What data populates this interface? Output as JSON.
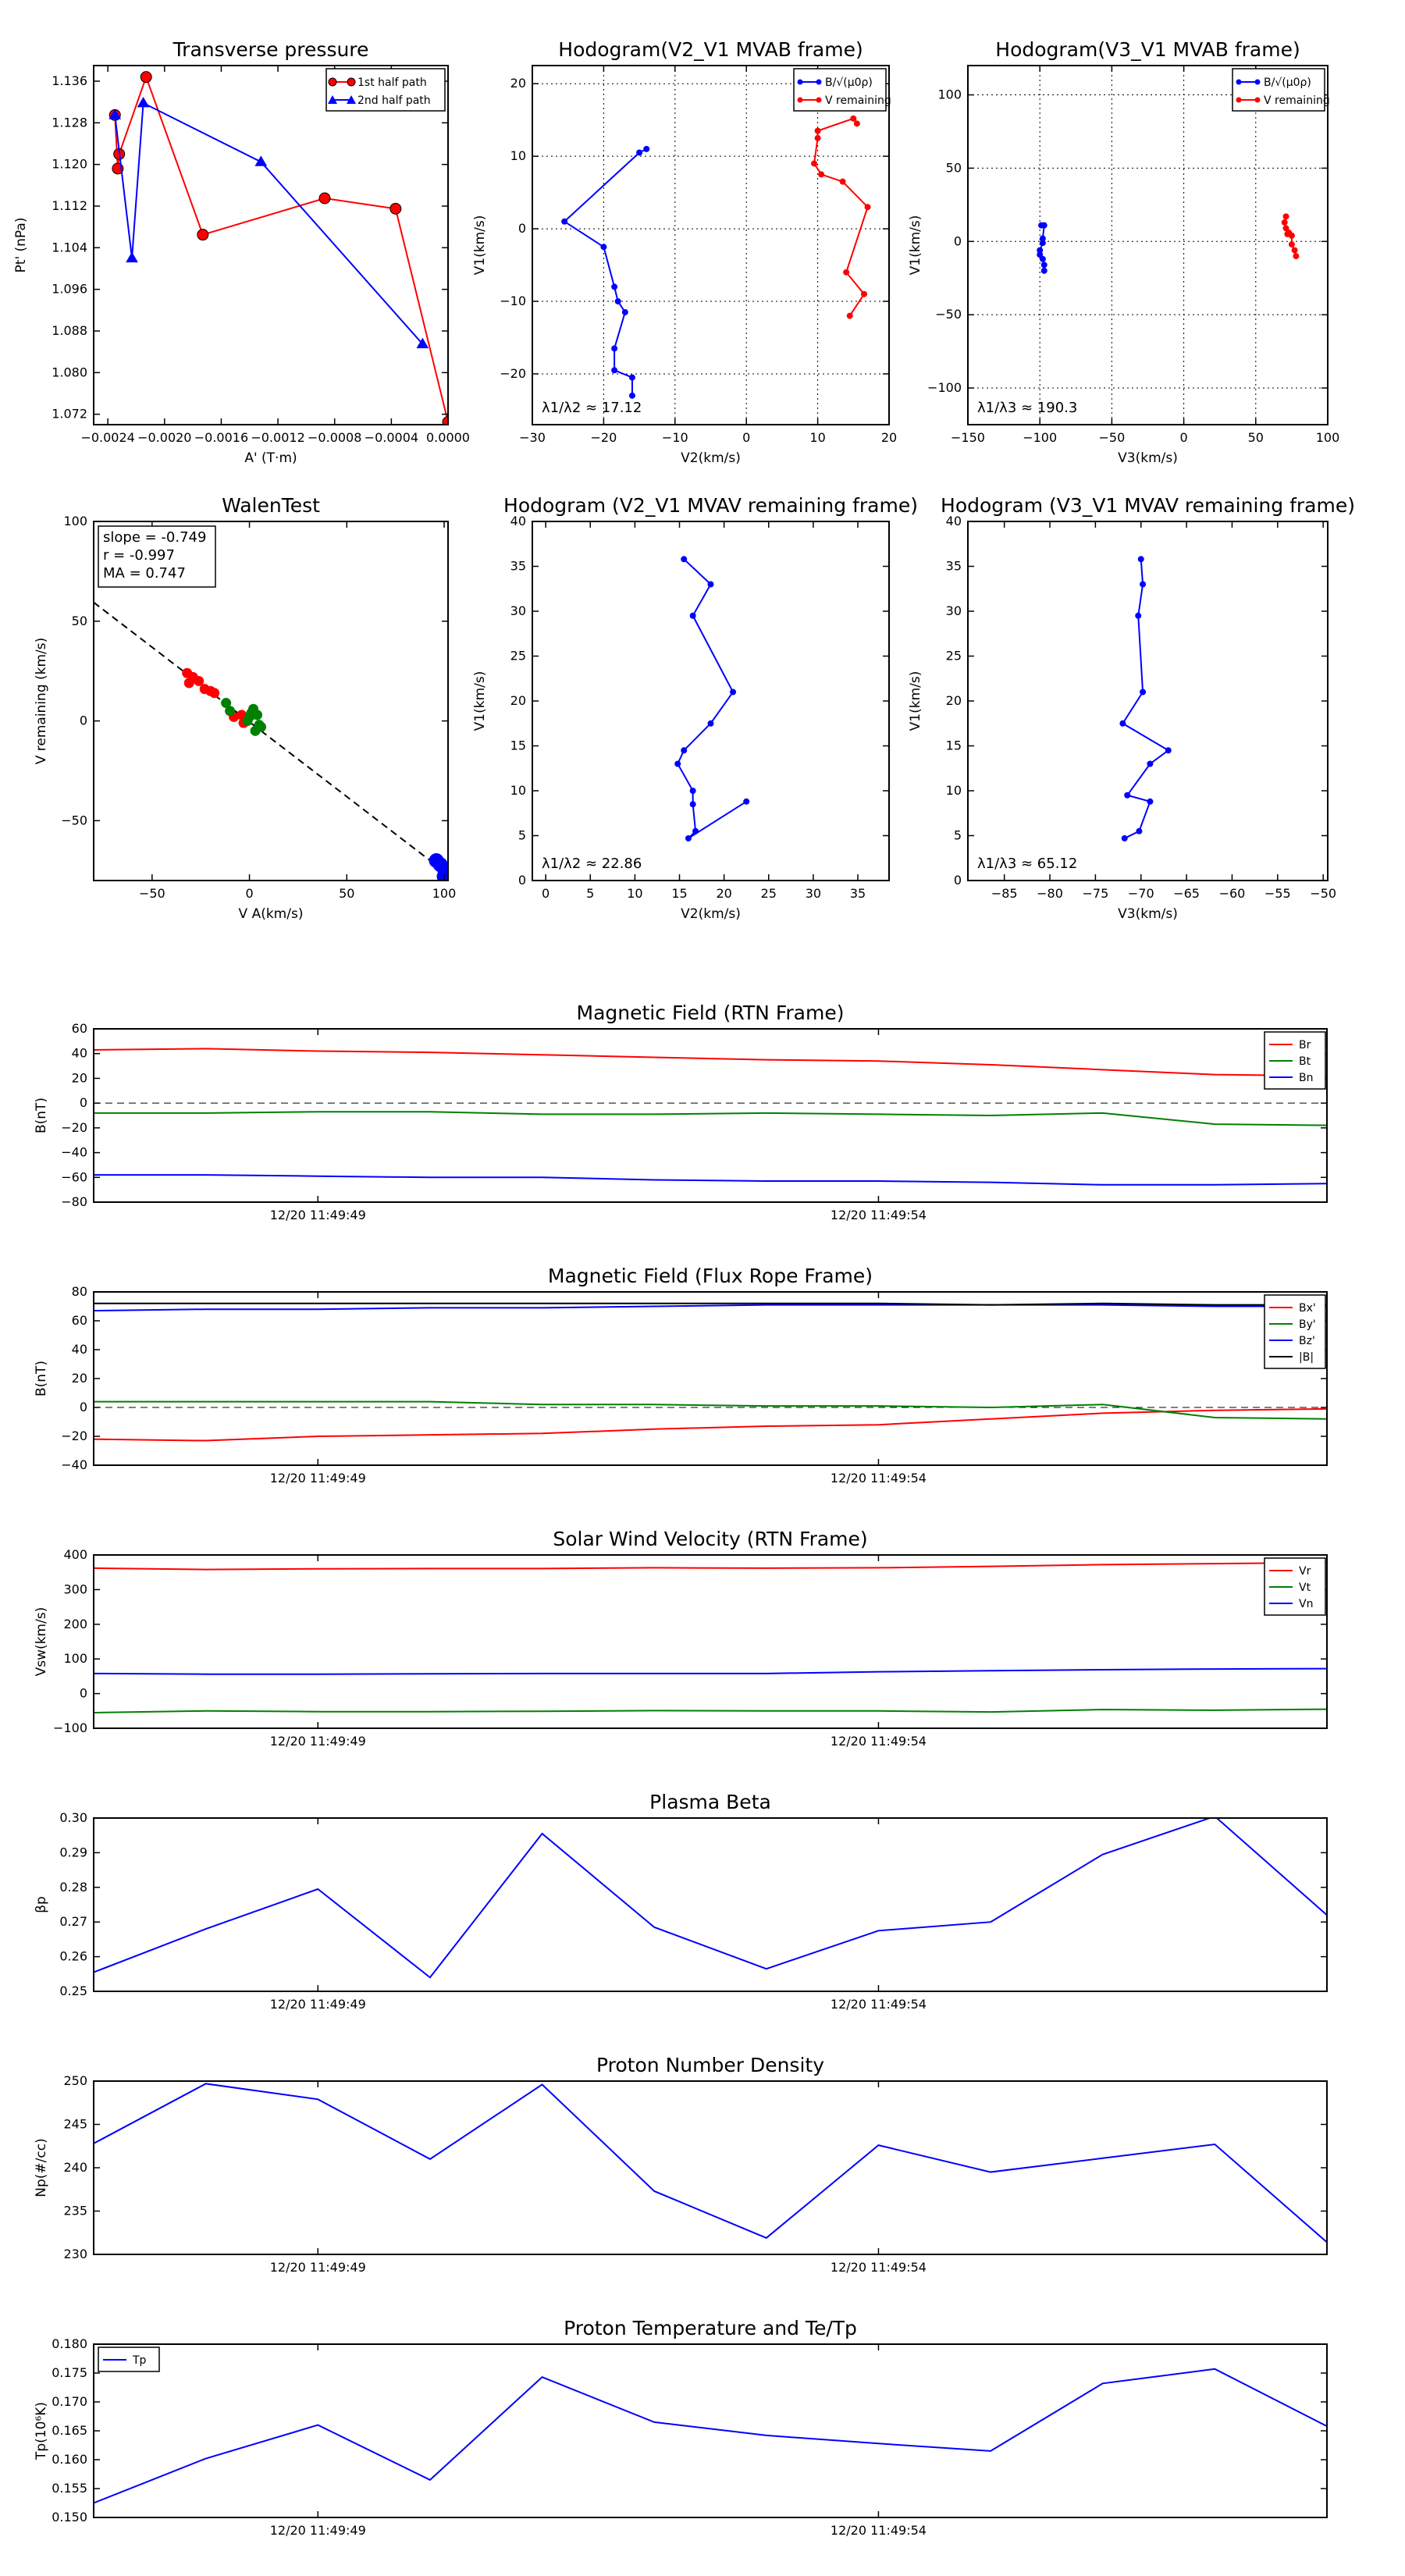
{
  "chart_data": [
    {
      "id": "p1",
      "type": "line",
      "title": "Transverse pressure",
      "xlabel": "A' (T·m)",
      "ylabel": "Pt' (nPa)",
      "xlim": [
        -0.0025,
        0.0
      ],
      "ylim": [
        1.07,
        1.139
      ],
      "xticks": [
        -0.0024,
        -0.002,
        -0.0016,
        -0.0012,
        -0.0008,
        -0.0004,
        0.0
      ],
      "xticklabels": [
        "−0.0024",
        "−0.0020",
        "−0.0016",
        "−0.0012",
        "−0.0008",
        "−0.0004",
        "0.0000"
      ],
      "yticks": [
        1.072,
        1.08,
        1.088,
        1.096,
        1.104,
        1.112,
        1.12,
        1.128,
        1.136
      ],
      "yticklabels": [
        "1.072",
        "1.080",
        "1.088",
        "1.096",
        "1.104",
        "1.112",
        "1.120",
        "1.128",
        "1.136"
      ],
      "grid": false,
      "legend": "top-right",
      "series": [
        {
          "name": "1st half path",
          "color": "#ff0000",
          "marker": "circle",
          "x": [
            0.0,
            -0.00037,
            -0.00087,
            -0.00173,
            -0.00213,
            -0.00232,
            -0.00233,
            -0.00235
          ],
          "y": [
            1.0705,
            1.1115,
            1.1135,
            1.1065,
            1.1368,
            1.122,
            1.1192,
            1.1295
          ]
        },
        {
          "name": "2nd half path",
          "color": "#0000ff",
          "marker": "triangle",
          "x": [
            -0.00235,
            -0.00223,
            -0.00215,
            -0.00132,
            -0.00018
          ],
          "y": [
            1.1295,
            1.102,
            1.1318,
            1.1205,
            1.0855
          ]
        }
      ]
    },
    {
      "id": "p2",
      "type": "line",
      "title": "Hodogram(V2_V1 MVAB frame)",
      "xlabel": "V2(km/s)",
      "ylabel": "V1(km/s)",
      "xlim": [
        -30,
        20
      ],
      "ylim": [
        -27,
        22.5
      ],
      "xticks": [
        -30,
        -20,
        -10,
        0,
        10,
        20
      ],
      "yticks": [
        -20,
        -10,
        0,
        10,
        20
      ],
      "xticklabels": [
        "−30",
        "−20",
        "−10",
        "0",
        "10",
        "20"
      ],
      "yticklabels": [
        "−20",
        "−10",
        "0",
        "10",
        "20"
      ],
      "grid": true,
      "legend": "top-right",
      "annotation": "λ1/λ2 ≈ 17.12",
      "series": [
        {
          "name": "B/√(μ0ρ)",
          "color": "#0000ff",
          "marker": "dot",
          "x": [
            -14,
            -15,
            -25.5,
            -20,
            -18.5,
            -18,
            -17,
            -18.5,
            -18.5,
            -16,
            -16
          ],
          "y": [
            11,
            10.5,
            1,
            -2.5,
            -8,
            -10,
            -11.5,
            -16.5,
            -19.5,
            -20.5,
            -23
          ]
        },
        {
          "name": "V remaining",
          "color": "#ff0000",
          "marker": "dot",
          "x": [
            15.5,
            15,
            10,
            10,
            9.5,
            10.5,
            13.5,
            17,
            14,
            16.5,
            14.5
          ],
          "y": [
            14.5,
            15.2,
            13.5,
            12.5,
            9,
            7.5,
            6.5,
            3,
            -6,
            -9,
            -12
          ]
        }
      ]
    },
    {
      "id": "p3",
      "type": "scatter",
      "title": "Hodogram(V3_V1 MVAB frame)",
      "xlabel": "V3(km/s)",
      "ylabel": "V1(km/s)",
      "xlim": [
        -150,
        100
      ],
      "ylim": [
        -125,
        120
      ],
      "xticks": [
        -150,
        -100,
        -50,
        0,
        50,
        100
      ],
      "yticks": [
        -100,
        -50,
        0,
        50,
        100
      ],
      "xticklabels": [
        "−150",
        "−100",
        "−50",
        "0",
        "50",
        "100"
      ],
      "yticklabels": [
        "−100",
        "−50",
        "0",
        "50",
        "100"
      ],
      "grid": true,
      "legend": "top-right",
      "annotation": "λ1/λ3 ≈ 190.3",
      "series": [
        {
          "name": "B/√(μ0ρ)",
          "color": "#0000ff",
          "marker": "dot",
          "x": [
            -99,
            -97,
            -98,
            -98,
            -100,
            -100,
            -98,
            -97,
            -97
          ],
          "y": [
            11,
            11,
            2,
            -1,
            -6,
            -9,
            -12,
            -16,
            -20
          ]
        },
        {
          "name": "V remaining",
          "color": "#ff0000",
          "marker": "dot",
          "x": [
            71,
            70,
            71,
            73,
            72,
            75,
            75,
            77,
            78
          ],
          "y": [
            17,
            13,
            9,
            6,
            5,
            4,
            -2,
            -6,
            -10
          ]
        }
      ]
    },
    {
      "id": "p4",
      "type": "scatter",
      "title": "WalenTest",
      "xlabel": "V A(km/s)",
      "ylabel": "V remaining (km/s)",
      "xlim": [
        -80,
        102
      ],
      "ylim": [
        -80,
        100
      ],
      "xticks": [
        -50,
        0,
        50,
        100
      ],
      "yticks": [
        -50,
        0,
        50,
        100
      ],
      "xticklabels": [
        "−50",
        "0",
        "50",
        "100"
      ],
      "yticklabels": [
        "−50",
        "0",
        "50",
        "100"
      ],
      "grid": false,
      "stats": [
        "slope = -0.749",
        "r = -0.997",
        "MA = 0.747"
      ],
      "fit_line": {
        "slope": -0.749,
        "intercept": -0.5
      },
      "series": [
        {
          "name": "red",
          "color": "#ff0000",
          "marker": "dot",
          "x": [
            -32,
            -29,
            -31,
            -26,
            -23,
            -18,
            -20,
            -8,
            -2,
            -3,
            -4
          ],
          "y": [
            24,
            22,
            19,
            20,
            16,
            14,
            15,
            2,
            0,
            -1,
            3
          ]
        },
        {
          "name": "green",
          "color": "#008000",
          "marker": "dot",
          "x": [
            -12,
            -10,
            0,
            2,
            4,
            5,
            3,
            6,
            1,
            -1
          ],
          "y": [
            9,
            5,
            2,
            6,
            3,
            -2,
            -5,
            -3,
            4,
            0
          ]
        },
        {
          "name": "blue",
          "color": "#0000ff",
          "marker": "dot",
          "x": [
            96,
            98,
            100,
            100
          ],
          "y": [
            -70,
            -72,
            -74,
            -78
          ]
        }
      ]
    },
    {
      "id": "p5",
      "type": "line",
      "title": "Hodogram (V2_V1 MVAV remaining frame)",
      "xlabel": "V2(km/s)",
      "ylabel": "V1(km/s)",
      "xlim": [
        -1.5,
        38.5
      ],
      "ylim": [
        0,
        40
      ],
      "xticks": [
        0,
        5,
        10,
        15,
        20,
        25,
        30,
        35
      ],
      "yticks": [
        0,
        5,
        10,
        15,
        20,
        25,
        30,
        35,
        40
      ],
      "grid": false,
      "annotation": "λ1/λ2 ≈ 22.86",
      "series": [
        {
          "name": "hodogram",
          "color": "#0000ff",
          "marker": "dot",
          "x": [
            15.5,
            18.5,
            16.5,
            21,
            18.5,
            15.5,
            14.8,
            16.5,
            16.5,
            16.8,
            16,
            22.5
          ],
          "y": [
            35.8,
            33,
            29.5,
            21,
            17.5,
            14.5,
            13,
            10,
            8.5,
            5.5,
            4.7,
            8.8
          ]
        }
      ]
    },
    {
      "id": "p6",
      "type": "line",
      "title": "Hodogram (V3_V1 MVAV remaining frame)",
      "xlabel": "V3(km/s)",
      "ylabel": "V1(km/s)",
      "xlim": [
        -89,
        -49.5
      ],
      "ylim": [
        0,
        40
      ],
      "xticks": [
        -85,
        -80,
        -75,
        -70,
        -65,
        -60,
        -55,
        -50
      ],
      "yticks": [
        0,
        5,
        10,
        15,
        20,
        25,
        30,
        35,
        40
      ],
      "xticklabels": [
        "−85",
        "−80",
        "−75",
        "−70",
        "−65",
        "−60",
        "−55",
        "−50"
      ],
      "grid": false,
      "annotation": "λ1/λ3 ≈ 65.12",
      "series": [
        {
          "name": "hodogram",
          "color": "#0000ff",
          "marker": "dot",
          "x": [
            -70,
            -69.8,
            -70.3,
            -69.8,
            -72,
            -67,
            -69,
            -71.5,
            -69,
            -70.2,
            -71.8
          ],
          "y": [
            35.8,
            33,
            29.5,
            21,
            17.5,
            14.5,
            13,
            9.5,
            8.8,
            5.5,
            4.7
          ]
        }
      ]
    },
    {
      "id": "ts1",
      "type": "line",
      "title": "Magnetic Field (RTN Frame)",
      "ylabel": "B(nT)",
      "ylim": [
        -80,
        60
      ],
      "yticks": [
        -80,
        -60,
        -40,
        -20,
        0,
        20,
        40,
        60
      ],
      "yticklabels": [
        "−80",
        "−60",
        "−40",
        "−20",
        "0",
        "20",
        "40",
        "60"
      ],
      "xticks": [
        2,
        7
      ],
      "xticklabels": [
        "12/20 11:49:49",
        "12/20 11:49:54"
      ],
      "zero_line": true,
      "legend": "top-right",
      "x": [
        0,
        1,
        2,
        3,
        4,
        5,
        6,
        7,
        8,
        9,
        10,
        11
      ],
      "series": [
        {
          "name": "Br",
          "color": "#ff0000",
          "values": [
            43,
            44,
            42,
            41,
            39,
            37,
            35,
            34,
            31,
            27,
            23,
            22
          ]
        },
        {
          "name": "Bt",
          "color": "#008000",
          "values": [
            -8,
            -8,
            -7,
            -7,
            -9,
            -9,
            -8,
            -9,
            -10,
            -8,
            -17,
            -18
          ]
        },
        {
          "name": "Bn",
          "color": "#0000ff",
          "values": [
            -58,
            -58,
            -59,
            -60,
            -60,
            -62,
            -63,
            -63,
            -64,
            -66,
            -66,
            -65
          ]
        }
      ]
    },
    {
      "id": "ts2",
      "type": "line",
      "title": "Magnetic Field (Flux Rope Frame)",
      "ylabel": "B(nT)",
      "ylim": [
        -40,
        80
      ],
      "yticks": [
        -40,
        -20,
        0,
        20,
        40,
        60,
        80
      ],
      "yticklabels": [
        "−40",
        "−20",
        "0",
        "20",
        "40",
        "60",
        "80"
      ],
      "xticks": [
        2,
        7
      ],
      "xticklabels": [
        "12/20 11:49:49",
        "12/20 11:49:54"
      ],
      "zero_line": true,
      "legend": "top-right",
      "x": [
        0,
        1,
        2,
        3,
        4,
        5,
        6,
        7,
        8,
        9,
        10,
        11
      ],
      "series": [
        {
          "name": "Bx'",
          "color": "#ff0000",
          "values": [
            -22,
            -23,
            -20,
            -19,
            -18,
            -15,
            -13,
            -12,
            -8,
            -4,
            -2,
            -1
          ]
        },
        {
          "name": "By'",
          "color": "#008000",
          "values": [
            4,
            4,
            4,
            4,
            2,
            2,
            1,
            1,
            0,
            2,
            -7,
            -8
          ]
        },
        {
          "name": "Bz'",
          "color": "#0000ff",
          "values": [
            67,
            68,
            68,
            69,
            69,
            70,
            71,
            71,
            71,
            71,
            70,
            70
          ]
        },
        {
          "name": "|B|",
          "color": "#000000",
          "values": [
            72,
            72,
            72,
            72,
            72,
            72,
            72,
            72,
            71,
            72,
            71,
            71
          ]
        }
      ]
    },
    {
      "id": "ts3",
      "type": "line",
      "title": "Solar Wind Velocity (RTN Frame)",
      "ylabel": "Vsw(km/s)",
      "ylim": [
        -100,
        400
      ],
      "yticks": [
        -100,
        0,
        100,
        200,
        300,
        400
      ],
      "yticklabels": [
        "−100",
        "0",
        "100",
        "200",
        "300",
        "400"
      ],
      "xticks": [
        2,
        7
      ],
      "xticklabels": [
        "12/20 11:49:49",
        "12/20 11:49:54"
      ],
      "zero_line": false,
      "legend": "top-right",
      "x": [
        0,
        1,
        2,
        3,
        4,
        5,
        6,
        7,
        8,
        9,
        10,
        11
      ],
      "series": [
        {
          "name": "Vr",
          "color": "#ff0000",
          "values": [
            362,
            358,
            360,
            361,
            361,
            363,
            362,
            363,
            367,
            372,
            375,
            378
          ]
        },
        {
          "name": "Vt",
          "color": "#008000",
          "values": [
            -55,
            -50,
            -52,
            -52,
            -51,
            -49,
            -50,
            -50,
            -53,
            -46,
            -48,
            -45
          ]
        },
        {
          "name": "Vn",
          "color": "#0000ff",
          "values": [
            58,
            56,
            56,
            57,
            58,
            58,
            58,
            63,
            66,
            69,
            71,
            72
          ]
        }
      ]
    },
    {
      "id": "ts4",
      "type": "line",
      "title": "Plasma Beta",
      "ylabel": "βp",
      "ylim": [
        0.25,
        0.3
      ],
      "yticks": [
        0.25,
        0.26,
        0.27,
        0.28,
        0.29,
        0.3
      ],
      "yticklabels": [
        "0.25",
        "0.26",
        "0.27",
        "0.28",
        "0.29",
        "0.30"
      ],
      "xticks": [
        2,
        7
      ],
      "xticklabels": [
        "12/20 11:49:49",
        "12/20 11:49:54"
      ],
      "zero_line": false,
      "legend": "none",
      "x": [
        0,
        1,
        2,
        3,
        4,
        5,
        6,
        7,
        8,
        9,
        10,
        11
      ],
      "series": [
        {
          "name": "βp",
          "color": "#0000ff",
          "values": [
            0.2555,
            0.268,
            0.2795,
            0.254,
            0.2955,
            0.2685,
            0.2565,
            0.2675,
            0.27,
            0.2895,
            0.3005,
            0.272
          ]
        }
      ]
    },
    {
      "id": "ts5",
      "type": "line",
      "title": "Proton Number Density",
      "ylabel": "Np(#/cc)",
      "ylim": [
        230,
        250
      ],
      "yticks": [
        230,
        235,
        240,
        245,
        250
      ],
      "yticklabels": [
        "230",
        "235",
        "240",
        "245",
        "250"
      ],
      "xticks": [
        2,
        7
      ],
      "xticklabels": [
        "12/20 11:49:49",
        "12/20 11:49:54"
      ],
      "zero_line": false,
      "legend": "none",
      "x": [
        0,
        1,
        2,
        3,
        4,
        5,
        6,
        7,
        8,
        9,
        10,
        11
      ],
      "series": [
        {
          "name": "Np",
          "color": "#0000ff",
          "values": [
            242.8,
            249.7,
            247.9,
            241.0,
            249.6,
            237.3,
            231.9,
            242.6,
            239.5,
            241.1,
            242.7,
            231.4
          ]
        }
      ]
    },
    {
      "id": "ts6",
      "type": "line",
      "title": "Proton Temperature and Te/Tp",
      "ylabel": "Tp(10⁶K)",
      "ylim": [
        0.15,
        0.18
      ],
      "yticks": [
        0.15,
        0.155,
        0.16,
        0.165,
        0.17,
        0.175,
        0.18
      ],
      "yticklabels": [
        "0.150",
        "0.155",
        "0.160",
        "0.165",
        "0.170",
        "0.175",
        "0.180"
      ],
      "xticks": [
        2,
        7
      ],
      "xticklabels": [
        "12/20 11:49:49",
        "12/20 11:49:54"
      ],
      "zero_line": false,
      "legend": "top-left",
      "x": [
        0,
        1,
        2,
        3,
        4,
        5,
        6,
        7,
        8,
        9,
        10,
        11
      ],
      "series": [
        {
          "name": "Tp",
          "color": "#0000ff",
          "values": [
            0.1525,
            0.1602,
            0.166,
            0.1565,
            0.1743,
            0.1665,
            0.1642,
            0.1628,
            0.1615,
            0.1732,
            0.1757,
            0.1658
          ]
        }
      ]
    }
  ]
}
